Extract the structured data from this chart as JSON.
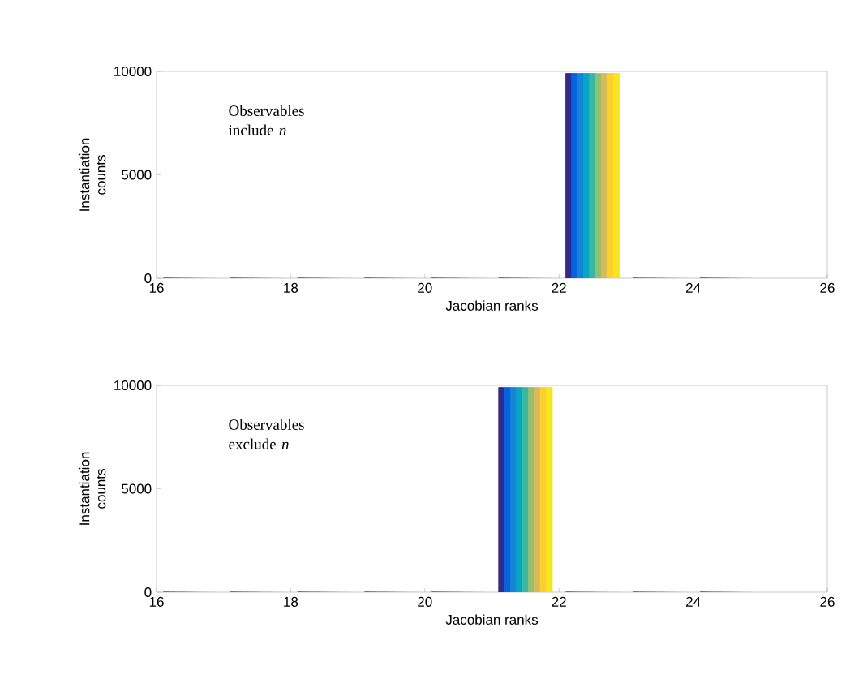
{
  "chart_data": [
    {
      "type": "bar",
      "xlabel": "Jacobian ranks",
      "ylabel": "Instantiation counts",
      "annotations": [
        "Observables include *n*"
      ],
      "x": [
        16.5,
        17.5,
        18.5,
        19.5,
        20.5,
        21.5,
        22.5,
        23.5,
        24.5
      ],
      "xlim": [
        16,
        26
      ],
      "xticks": [
        16,
        18,
        20,
        22,
        24,
        26
      ],
      "ylim": [
        0,
        10000
      ],
      "yticks": [
        0,
        5000,
        10000
      ],
      "series": [
        {
          "color": "#352a87",
          "values": [
            0,
            0,
            0,
            0,
            0,
            0,
            9900,
            0,
            0
          ]
        },
        {
          "color": "#0363e1",
          "values": [
            0,
            0,
            0,
            0,
            0,
            0,
            9900,
            0,
            0
          ]
        },
        {
          "color": "#1485d4",
          "values": [
            0,
            0,
            0,
            0,
            0,
            0,
            9900,
            0,
            0
          ]
        },
        {
          "color": "#06a7c6",
          "values": [
            0,
            0,
            0,
            0,
            0,
            0,
            9900,
            0,
            0
          ]
        },
        {
          "color": "#38b99e",
          "values": [
            0,
            0,
            0,
            0,
            0,
            0,
            9900,
            0,
            0
          ]
        },
        {
          "color": "#92bf73",
          "values": [
            0,
            0,
            0,
            0,
            0,
            0,
            9900,
            0,
            0
          ]
        },
        {
          "color": "#d9ba56",
          "values": [
            0,
            0,
            0,
            0,
            0,
            0,
            9900,
            0,
            0
          ]
        },
        {
          "color": "#fcce2e",
          "values": [
            0,
            0,
            0,
            0,
            0,
            0,
            9900,
            0,
            0
          ]
        },
        {
          "color": "#f5e61d",
          "values": [
            0,
            0,
            0,
            0,
            0,
            0,
            9900,
            0,
            0
          ]
        }
      ]
    },
    {
      "type": "bar",
      "xlabel": "Jacobian ranks",
      "ylabel": "Instantiation counts",
      "annotations": [
        "Observables exclude *n*"
      ],
      "x": [
        16.5,
        17.5,
        18.5,
        19.5,
        20.5,
        21.5,
        22.5,
        23.5,
        24.5
      ],
      "xlim": [
        16,
        26
      ],
      "xticks": [
        16,
        18,
        20,
        22,
        24,
        26
      ],
      "ylim": [
        0,
        10000
      ],
      "yticks": [
        0,
        5000,
        10000
      ],
      "series": [
        {
          "color": "#352a87",
          "values": [
            0,
            0,
            0,
            0,
            0,
            9900,
            0,
            0,
            0
          ]
        },
        {
          "color": "#0363e1",
          "values": [
            0,
            0,
            0,
            0,
            0,
            9900,
            0,
            0,
            0
          ]
        },
        {
          "color": "#1485d4",
          "values": [
            0,
            0,
            0,
            0,
            0,
            9900,
            0,
            0,
            0
          ]
        },
        {
          "color": "#06a7c6",
          "values": [
            0,
            0,
            0,
            0,
            0,
            9900,
            0,
            0,
            0
          ]
        },
        {
          "color": "#38b99e",
          "values": [
            0,
            0,
            0,
            0,
            0,
            9900,
            0,
            0,
            0
          ]
        },
        {
          "color": "#92bf73",
          "values": [
            0,
            0,
            0,
            0,
            0,
            9900,
            0,
            0,
            0
          ]
        },
        {
          "color": "#d9ba56",
          "values": [
            0,
            0,
            0,
            0,
            0,
            9900,
            0,
            0,
            0
          ]
        },
        {
          "color": "#fcce2e",
          "values": [
            0,
            0,
            0,
            0,
            0,
            9900,
            0,
            0,
            0
          ]
        },
        {
          "color": "#f5e61d",
          "values": [
            0,
            0,
            0,
            0,
            0,
            9900,
            0,
            0,
            0
          ]
        }
      ]
    }
  ]
}
